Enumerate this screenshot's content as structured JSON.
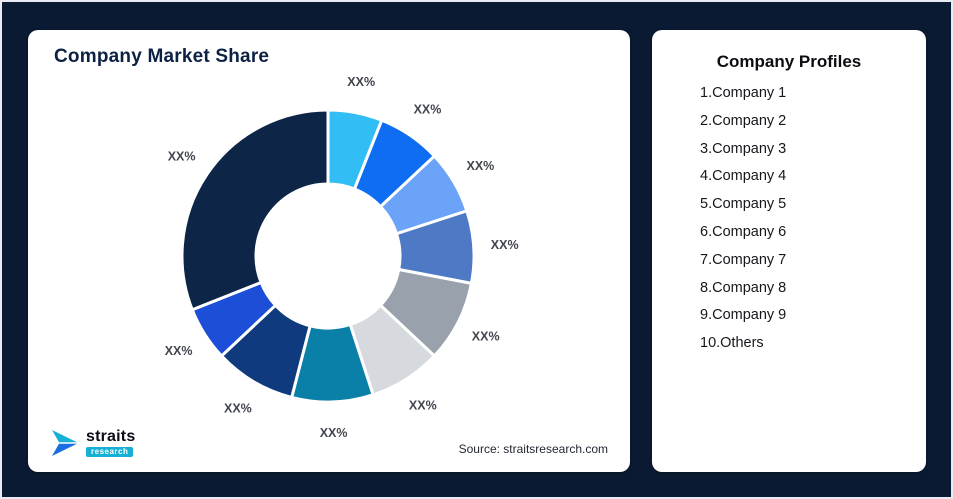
{
  "page": {
    "background": "#0b1a33"
  },
  "left_card": {
    "title": "Company Market Share",
    "source": "Source: straitsresearch.com",
    "logo": {
      "name": "straits",
      "sub": "research",
      "teal": "#16b0d4",
      "blue": "#1a6fe0"
    }
  },
  "right_card": {
    "title": "Company Profiles",
    "items": [
      "1.Company 1",
      "2.Company 2",
      "3.Company 3",
      "4.Company 4",
      "5.Company 5",
      "6.Company 6",
      "7.Company 7",
      "8.Company 8",
      "9.Company 9",
      "10.Others"
    ]
  },
  "chart_data": {
    "type": "pie",
    "variant": "donut",
    "title": "Company Market Share",
    "legend": "none",
    "start_angle_deg": 0,
    "direction": "clockwise",
    "inner_radius_ratio": 0.49,
    "categories": [
      "Company 1",
      "Company 2",
      "Company 3",
      "Company 4",
      "Company 5",
      "Company 6",
      "Company 7",
      "Company 8",
      "Company 9",
      "Others"
    ],
    "values": [
      6,
      7,
      7,
      8,
      9,
      8,
      9,
      9,
      6,
      31
    ],
    "display_labels": [
      "XX%",
      "XX%",
      "XX%",
      "XX%",
      "XX%",
      "XX%",
      "XX%",
      "XX%",
      "XX%",
      "XX%"
    ],
    "colors": [
      "#33bdf5",
      "#0f6df2",
      "#6aa3f8",
      "#4e79c4",
      "#99a1ac",
      "#d6dade",
      "#0a7fa8",
      "#0f3a7d",
      "#1d4ed8",
      "#0d2547"
    ]
  }
}
